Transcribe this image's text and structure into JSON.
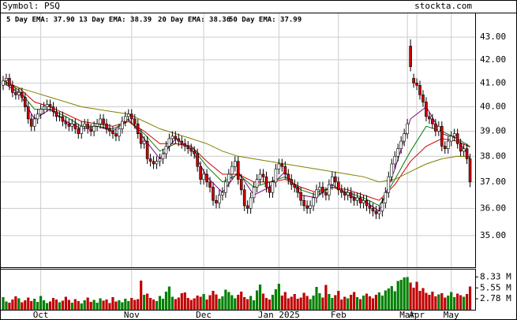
{
  "chart_data": {
    "type": "candlestick",
    "symbol": "Symbol: PSQ",
    "site": "stockta.com",
    "log_scale": true,
    "grid": true,
    "ylim": [
      33.87,
      44.07
    ],
    "yticks": [
      {
        "value": 35,
        "label": "35.00"
      },
      {
        "value": 36,
        "label": "36.00"
      },
      {
        "value": 37,
        "label": "37.00"
      },
      {
        "value": 38,
        "label": "38.00"
      },
      {
        "value": 39,
        "label": "39.00"
      },
      {
        "value": 40,
        "label": "40.00"
      },
      {
        "value": 41,
        "label": "41.00"
      },
      {
        "value": 42,
        "label": "42.00"
      },
      {
        "value": 43,
        "label": "43.00"
      }
    ],
    "volume_ylim": [
      0,
      10.2
    ],
    "volume_ticks": [
      {
        "value": 2.78,
        "label": "2.78 M"
      },
      {
        "value": 5.55,
        "label": "5.55 M"
      },
      {
        "value": 8.33,
        "label": "8.33 M"
      }
    ],
    "month_ticks": [
      {
        "value": 12,
        "label": "Oct"
      },
      {
        "value": 41,
        "label": "Nov"
      },
      {
        "value": 64,
        "label": "Dec"
      },
      {
        "value": 88,
        "label": "Jan 2025"
      },
      {
        "value": 107,
        "label": "Feb"
      },
      {
        "value": 129,
        "label": "Mar"
      },
      {
        "value": 132,
        "label": "Apr"
      },
      {
        "value": 143,
        "label": "May"
      }
    ],
    "up_color": "#ffffff",
    "down_color": "#cc0000",
    "volume_up_color": "#008000",
    "volume_down_color": "#c00000",
    "open": [
      40.9,
      41.1,
      41.2,
      40.9,
      40.6,
      40.5,
      40.6,
      40.4,
      40.0,
      39.5,
      39.2,
      39.5,
      39.7,
      39.9,
      40.0,
      40.1,
      40.0,
      39.8,
      39.6,
      39.6,
      39.4,
      39.3,
      39.2,
      39.3,
      39.1,
      38.9,
      39.2,
      39.3,
      39.1,
      39.0,
      39.2,
      39.3,
      39.5,
      39.3,
      39.1,
      39.0,
      38.9,
      38.8,
      39.1,
      39.4,
      39.6,
      39.7,
      39.5,
      39.3,
      38.9,
      38.5,
      38.6,
      37.9,
      37.8,
      37.7,
      37.8,
      37.9,
      38.1,
      38.4,
      38.7,
      38.8,
      38.7,
      38.6,
      38.5,
      38.4,
      38.3,
      38.2,
      38.1,
      37.6,
      37.1,
      37.3,
      37.0,
      36.8,
      36.3,
      36.2,
      36.5,
      36.6,
      37.0,
      37.3,
      37.6,
      37.8,
      37.1,
      36.7,
      36.1,
      36.0,
      36.4,
      36.8,
      37.1,
      37.3,
      37.2,
      36.8,
      36.6,
      37.0,
      37.5,
      37.7,
      37.6,
      37.3,
      37.1,
      36.9,
      36.8,
      36.6,
      36.3,
      36.1,
      36.0,
      36.1,
      36.4,
      36.7,
      36.8,
      36.6,
      36.5,
      36.9,
      37.2,
      37.0,
      36.7,
      36.6,
      36.5,
      36.6,
      36.4,
      36.3,
      36.4,
      36.2,
      36.3,
      36.1,
      36.0,
      35.9,
      35.8,
      35.9,
      36.2,
      36.6,
      37.2,
      37.7,
      38.0,
      38.3,
      38.6,
      38.9,
      42.6,
      41.2,
      41.0,
      40.9,
      40.5,
      40.2,
      39.6,
      39.5,
      39.3,
      39.0,
      39.2,
      38.4,
      38.3,
      38.6,
      38.8,
      38.9,
      38.5,
      38.2,
      38.3,
      37.9
    ],
    "high": [
      41.3,
      41.4,
      41.4,
      41.1,
      40.8,
      40.8,
      40.8,
      40.6,
      40.2,
      39.7,
      39.7,
      39.9,
      40.1,
      40.2,
      40.3,
      40.3,
      40.2,
      40.0,
      39.8,
      39.8,
      39.6,
      39.5,
      39.5,
      39.5,
      39.3,
      39.4,
      39.5,
      39.5,
      39.3,
      39.4,
      39.5,
      39.7,
      39.7,
      39.5,
      39.3,
      39.2,
      39.1,
      39.3,
      39.6,
      39.8,
      39.9,
      39.9,
      39.7,
      39.5,
      39.1,
      38.8,
      38.8,
      38.1,
      38.0,
      38.0,
      38.1,
      38.3,
      38.6,
      38.9,
      39.0,
      39.0,
      38.9,
      38.8,
      38.7,
      38.6,
      38.5,
      38.4,
      38.3,
      37.8,
      37.5,
      37.5,
      37.2,
      37.0,
      36.5,
      36.7,
      36.8,
      37.2,
      37.5,
      37.8,
      38.0,
      38.0,
      37.3,
      36.9,
      36.3,
      36.6,
      37.0,
      37.3,
      37.5,
      37.5,
      37.4,
      37.0,
      37.2,
      37.7,
      37.9,
      37.9,
      37.8,
      37.5,
      37.3,
      37.1,
      37.0,
      36.8,
      36.5,
      36.3,
      36.3,
      36.6,
      36.9,
      37.0,
      37.0,
      36.8,
      37.1,
      37.4,
      37.4,
      37.2,
      36.9,
      36.8,
      36.8,
      36.8,
      36.6,
      36.6,
      36.6,
      36.5,
      36.5,
      36.3,
      36.2,
      36.1,
      36.1,
      36.4,
      36.8,
      37.4,
      37.9,
      38.2,
      38.5,
      38.8,
      39.1,
      39.5,
      42.9,
      41.4,
      41.2,
      41.1,
      40.7,
      40.4,
      39.8,
      39.7,
      39.5,
      39.4,
      39.4,
      38.6,
      38.8,
      39.0,
      39.1,
      39.1,
      38.7,
      38.5,
      38.5,
      38.1
    ],
    "low": [
      40.7,
      40.9,
      40.7,
      40.4,
      40.3,
      40.3,
      40.2,
      39.8,
      39.3,
      39.0,
      39.0,
      39.3,
      39.5,
      39.7,
      39.8,
      39.8,
      39.6,
      39.4,
      39.4,
      39.2,
      39.1,
      39.0,
      39.0,
      38.9,
      38.7,
      38.7,
      39.0,
      38.9,
      38.8,
      38.8,
      39.0,
      39.1,
      39.1,
      38.9,
      38.8,
      38.7,
      38.6,
      38.6,
      38.9,
      39.2,
      39.4,
      39.3,
      39.1,
      38.7,
      38.3,
      38.3,
      37.7,
      37.6,
      37.5,
      37.5,
      37.6,
      37.7,
      37.9,
      38.2,
      38.5,
      38.5,
      38.4,
      38.3,
      38.2,
      38.1,
      38.0,
      37.9,
      37.4,
      36.9,
      36.9,
      36.8,
      36.6,
      36.1,
      36.0,
      36.0,
      36.3,
      36.4,
      36.8,
      37.1,
      37.4,
      36.9,
      36.5,
      35.9,
      35.8,
      35.8,
      36.2,
      36.6,
      36.9,
      37.0,
      36.6,
      36.4,
      36.4,
      36.8,
      37.3,
      37.4,
      37.1,
      36.9,
      36.7,
      36.6,
      36.4,
      36.1,
      35.9,
      35.8,
      35.8,
      35.9,
      36.2,
      36.5,
      36.4,
      36.3,
      36.3,
      36.7,
      36.8,
      36.5,
      36.4,
      36.3,
      36.3,
      36.2,
      36.1,
      36.1,
      36.0,
      36.0,
      35.9,
      35.8,
      35.7,
      35.6,
      35.6,
      35.7,
      36.0,
      36.4,
      37.0,
      37.5,
      37.8,
      38.1,
      38.4,
      38.7,
      41.5,
      40.8,
      40.7,
      40.3,
      40.0,
      39.4,
      39.3,
      39.1,
      38.8,
      38.8,
      38.2,
      38.1,
      38.1,
      38.4,
      38.6,
      38.3,
      38.0,
      38.0,
      37.7,
      36.8
    ],
    "close": [
      41.1,
      41.2,
      40.9,
      40.6,
      40.5,
      40.6,
      40.4,
      40.0,
      39.5,
      39.2,
      39.5,
      39.7,
      39.9,
      40.0,
      40.1,
      40.0,
      39.8,
      39.6,
      39.6,
      39.4,
      39.3,
      39.2,
      39.3,
      39.1,
      38.9,
      39.2,
      39.3,
      39.1,
      39.0,
      39.2,
      39.3,
      39.5,
      39.3,
      39.1,
      39.0,
      38.9,
      38.8,
      39.1,
      39.4,
      39.6,
      39.7,
      39.5,
      39.3,
      38.9,
      38.5,
      38.6,
      37.9,
      37.8,
      37.7,
      37.8,
      37.9,
      38.1,
      38.4,
      38.7,
      38.8,
      38.7,
      38.6,
      38.5,
      38.4,
      38.3,
      38.2,
      38.1,
      37.6,
      37.1,
      37.3,
      37.0,
      36.8,
      36.3,
      36.2,
      36.5,
      36.6,
      37.0,
      37.3,
      37.6,
      37.8,
      37.1,
      36.7,
      36.1,
      36.0,
      36.4,
      36.8,
      37.1,
      37.3,
      37.2,
      36.8,
      36.6,
      37.0,
      37.5,
      37.7,
      37.6,
      37.3,
      37.1,
      36.9,
      36.8,
      36.6,
      36.3,
      36.1,
      36.0,
      36.1,
      36.4,
      36.7,
      36.8,
      36.6,
      36.5,
      36.9,
      37.2,
      37.0,
      36.7,
      36.6,
      36.5,
      36.6,
      36.4,
      36.3,
      36.4,
      36.2,
      36.3,
      36.1,
      36.0,
      35.9,
      35.8,
      35.9,
      36.2,
      36.6,
      37.2,
      37.7,
      38.0,
      38.3,
      38.6,
      38.9,
      39.3,
      41.7,
      41.0,
      40.9,
      40.5,
      40.2,
      39.6,
      39.5,
      39.3,
      39.0,
      39.2,
      38.4,
      38.3,
      38.6,
      38.8,
      38.9,
      38.5,
      38.2,
      38.3,
      37.9,
      37.0
    ],
    "volume": [
      3.2,
      2.1,
      1.8,
      2.6,
      3.4,
      2.9,
      1.9,
      2.4,
      3.1,
      2.2,
      2.8,
      2.0,
      3.5,
      2.4,
      1.7,
      2.1,
      3.0,
      2.6,
      1.9,
      2.3,
      3.3,
      2.5,
      1.8,
      2.7,
      2.2,
      1.6,
      2.4,
      3.1,
      2.0,
      2.5,
      1.8,
      2.9,
      2.3,
      2.6,
      1.7,
      3.2,
      2.1,
      2.4,
      1.9,
      2.8,
      2.2,
      3.0,
      2.5,
      2.7,
      7.4,
      3.8,
      4.1,
      3.0,
      2.6,
      2.2,
      3.5,
      2.8,
      4.6,
      5.9,
      3.3,
      2.7,
      3.1,
      4.2,
      4.4,
      3.0,
      2.5,
      2.9,
      3.6,
      3.3,
      4.0,
      2.6,
      3.7,
      4.8,
      3.9,
      2.8,
      3.4,
      5.1,
      4.5,
      3.7,
      2.9,
      3.8,
      4.6,
      3.2,
      2.7,
      3.5,
      2.4,
      4.9,
      6.4,
      4.1,
      3.0,
      2.6,
      3.8,
      5.2,
      6.6,
      3.6,
      4.5,
      2.9,
      3.3,
      4.0,
      2.8,
      3.1,
      4.3,
      3.5,
      2.7,
      3.6,
      5.8,
      4.2,
      3.1,
      6.3,
      4.0,
      3.0,
      3.7,
      4.8,
      2.6,
      3.3,
      2.9,
      3.8,
      4.5,
      3.2,
      2.7,
      3.6,
      4.1,
      3.4,
      2.9,
      3.8,
      4.4,
      3.6,
      4.9,
      5.4,
      6.0,
      4.7,
      7.3,
      7.6,
      8.2,
      8.3,
      6.9,
      5.6,
      7.1,
      4.8,
      5.5,
      4.3,
      3.8,
      4.6,
      3.4,
      3.9,
      4.2,
      3.1,
      3.6,
      4.5,
      3.2,
      4.1,
      3.7,
      3.3,
      4.0,
      5.9
    ],
    "ema_x": [
      0,
      5,
      10,
      15,
      20,
      25,
      30,
      35,
      40,
      45,
      50,
      55,
      60,
      65,
      70,
      75,
      80,
      85,
      90,
      95,
      100,
      105,
      110,
      115,
      120,
      125,
      130,
      135,
      140,
      145,
      149
    ],
    "series": [
      {
        "name": "5 Day EMA: 37.90",
        "color": "#800080",
        "values": [
          41.0,
          40.6,
          39.5,
          39.9,
          39.4,
          39.1,
          39.2,
          39.0,
          39.5,
          38.7,
          37.9,
          38.7,
          38.3,
          37.2,
          36.6,
          37.4,
          36.5,
          36.8,
          37.4,
          36.5,
          36.4,
          36.9,
          36.5,
          36.3,
          35.9,
          37.5,
          39.5,
          40.0,
          38.9,
          38.7,
          37.9
        ]
      },
      {
        "name": "13 Day EMA: 38.39",
        "color": "#008000",
        "values": [
          41.1,
          40.7,
          39.9,
          39.9,
          39.6,
          39.2,
          39.2,
          39.1,
          39.4,
          38.9,
          38.2,
          38.5,
          38.4,
          37.6,
          37.0,
          37.3,
          36.8,
          37.0,
          37.2,
          36.7,
          36.5,
          36.8,
          36.6,
          36.4,
          36.1,
          37.1,
          38.2,
          39.2,
          39.0,
          38.7,
          38.39
        ]
      },
      {
        "name": "20 Day EMA: 38.36",
        "color": "#cc0000",
        "values": [
          41.1,
          40.8,
          40.2,
          40.0,
          39.7,
          39.4,
          39.3,
          39.2,
          39.4,
          39.0,
          38.5,
          38.5,
          38.4,
          37.8,
          37.3,
          37.3,
          37.0,
          37.0,
          37.1,
          36.8,
          36.6,
          36.8,
          36.7,
          36.5,
          36.3,
          36.9,
          37.8,
          38.4,
          38.7,
          38.6,
          38.36
        ]
      },
      {
        "name": "50 Day EMA: 37.99",
        "color": "#808000",
        "values": [
          41.0,
          40.8,
          40.6,
          40.4,
          40.2,
          40.0,
          39.9,
          39.8,
          39.7,
          39.4,
          39.1,
          38.9,
          38.7,
          38.5,
          38.2,
          38.0,
          37.9,
          37.8,
          37.7,
          37.6,
          37.5,
          37.4,
          37.3,
          37.2,
          37.0,
          37.1,
          37.4,
          37.7,
          37.9,
          38.0,
          37.99
        ]
      }
    ]
  }
}
